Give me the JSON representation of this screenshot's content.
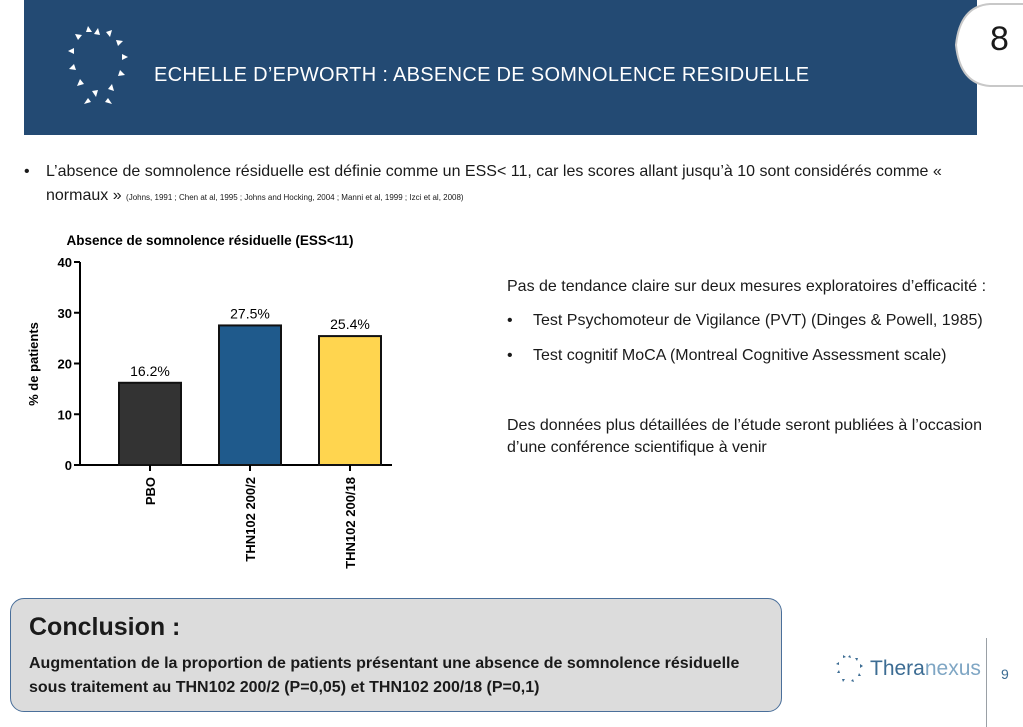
{
  "header": {
    "title": "ECHELLE D’EPWORTH : ABSENCE DE SOMNOLENCE RESIDUELLE",
    "page_tab": "8"
  },
  "bullets": [
    {
      "text": "L’absence de somnolence résiduelle est définie comme un ESS< 11, car les scores allant jusqu’à 10 sont considérés comme « normaux »",
      "refs": "(Johns, 1991 ; Chen at al, 1995 ; Johns and Hocking, 2004 ; Manni et al, 1999 ; Izci et al, 2008)"
    }
  ],
  "chart_data": {
    "type": "bar",
    "title": "Absence de somnolence résiduelle (ESS<11)",
    "xlabel": "",
    "ylabel": "% de patients",
    "categories": [
      "PBO",
      "THN102 200/2",
      "THN102 200/18"
    ],
    "values": [
      16.2,
      27.5,
      25.4
    ],
    "data_labels": [
      "16.2%",
      "27.5%",
      "25.4%"
    ],
    "bar_colors": [
      "#333333",
      "#1f5a8c",
      "#ffd54f"
    ],
    "ylim": [
      0,
      40
    ],
    "yticks": [
      0,
      10,
      20,
      30,
      40
    ],
    "grid": false,
    "legend": "none"
  },
  "right_panel": {
    "intro": "Pas de tendance claire sur deux mesures exploratoires d’efficacité :",
    "items": [
      "Test Psychomoteur de Vigilance (PVT) (Dinges & Powell, 1985)",
      "Test cognitif MoCA (Montreal Cognitive Assessment scale)"
    ],
    "note": "Des données plus détaillées de l’étude seront publiées à l’occasion d’une conférence scientifique à venir"
  },
  "conclusion": {
    "title": "Conclusion :",
    "body": "Augmentation de la proportion de patients présentant une absence de somnolence résiduelle sous traitement au THN102 200/2 (P=0,05) et THN102 200/18 (P=0,1)"
  },
  "footer": {
    "brand_a": "Thera",
    "brand_b": "nexus",
    "page_number": "9"
  },
  "colors": {
    "header_band": "#234a73",
    "brand": "#3c6c93"
  },
  "icons": {
    "header_logo": "theranexus-star-ring-icon",
    "footer_logo": "theranexus-star-ring-icon"
  }
}
